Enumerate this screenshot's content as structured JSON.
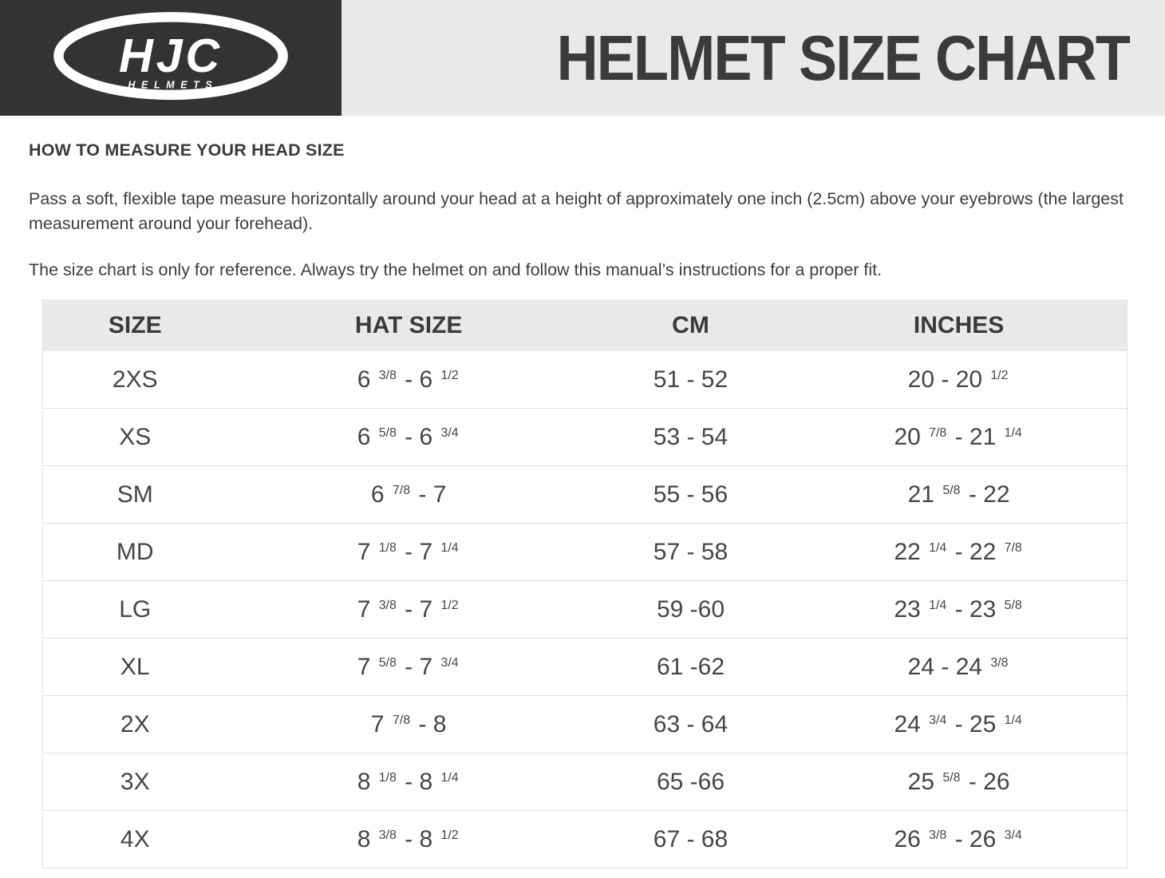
{
  "header": {
    "title": "HELMET SIZE CHART",
    "logo": {
      "brand": "HJC",
      "subtext": "HELMETS"
    }
  },
  "instructions": {
    "heading": "HOW TO MEASURE YOUR HEAD SIZE",
    "paragraph1": "Pass a soft, flexible tape measure horizontally around your head at a height of approximately one inch (2.5cm) above your eyebrows (the largest measurement around your forehead).",
    "paragraph2": "The size chart is only for reference. Always try the helmet on and follow this manual’s instructions for a proper fit."
  },
  "size_table": {
    "columns": [
      "SIZE",
      "HAT SIZE",
      "CM",
      "INCHES"
    ],
    "rows": [
      {
        "size": "2XS",
        "hat_size": "6 {3/8} - 6 {1/2}",
        "cm": "51 - 52",
        "inches": "20 - 20 {1/2}"
      },
      {
        "size": "XS",
        "hat_size": "6 {5/8} - 6 {3/4}",
        "cm": "53 - 54",
        "inches": "20 {7/8} - 21 {1/4}"
      },
      {
        "size": "SM",
        "hat_size": "6 {7/8} - 7",
        "cm": "55 - 56",
        "inches": "21 {5/8} - 22"
      },
      {
        "size": "MD",
        "hat_size": "7 {1/8} - 7 {1/4}",
        "cm": "57 - 58",
        "inches": "22 {1/4} - 22 {7/8}"
      },
      {
        "size": "LG",
        "hat_size": "7 {3/8} - 7 {1/2}",
        "cm": "59 -60",
        "inches": "23 {1/4} - 23 {5/8}"
      },
      {
        "size": "XL",
        "hat_size": "7 {5/8} - 7 {3/4}",
        "cm": "61 -62",
        "inches": "24 - 24 {3/8}"
      },
      {
        "size": "2X",
        "hat_size": "7 {7/8} - 8",
        "cm": "63 - 64",
        "inches": "24 {3/4} - 25 {1/4}"
      },
      {
        "size": "3X",
        "hat_size": "8 {1/8} - 8 {1/4}",
        "cm": "65 -66",
        "inches": "25 {5/8} - 26"
      },
      {
        "size": "4X",
        "hat_size": "8 {3/8} - 8 {1/2}",
        "cm": "67 - 68",
        "inches": "26 {3/8} - 26 {3/4}"
      }
    ]
  },
  "colors": {
    "logo_box_bg": "#333333",
    "band_bg": "#e9e9e9",
    "table_header_bg": "#e9e9e9",
    "text": "#3d3d3d",
    "border": "#e0e0e0"
  }
}
